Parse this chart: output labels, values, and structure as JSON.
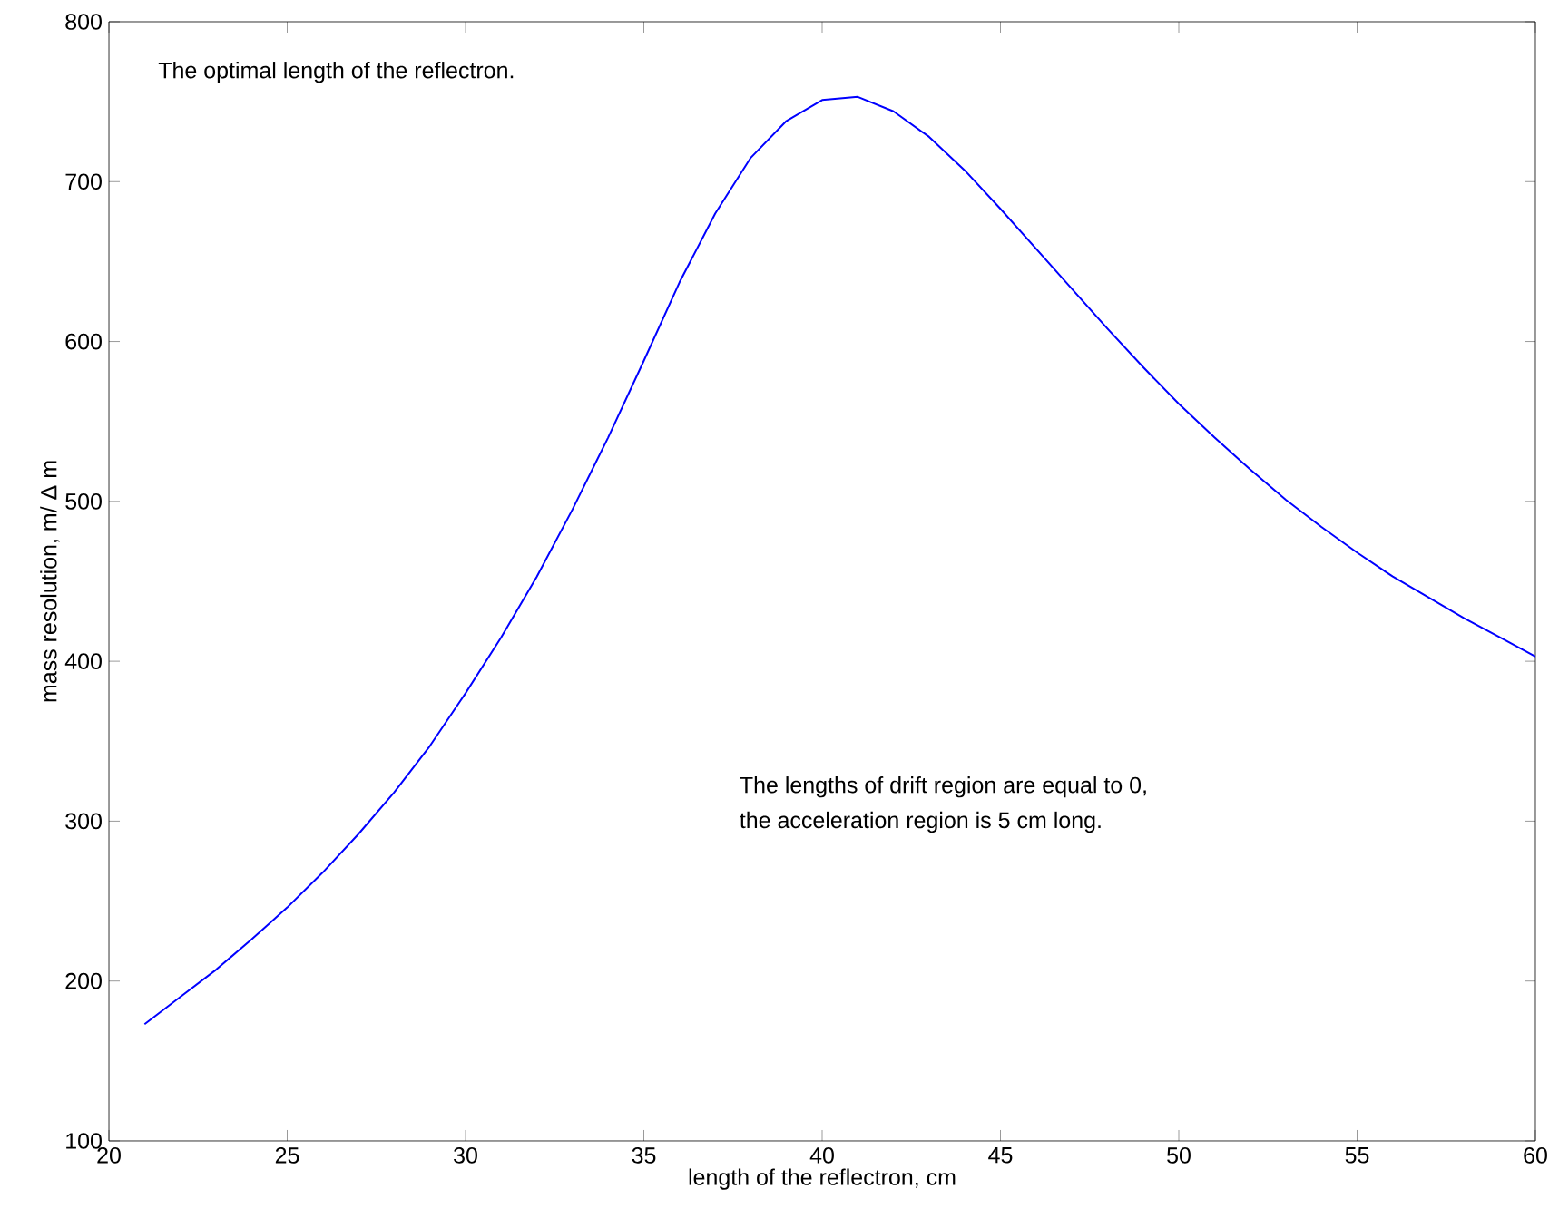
{
  "chart_data": {
    "type": "line",
    "xlabel": "length of the reflectron, cm",
    "ylabel": "mass resolution, m/ Δ m",
    "annotations": [
      {
        "text": "The optimal length of the reflectron."
      },
      {
        "text": "The lengths of drift region are equal to 0,"
      },
      {
        "text": "the acceleration region is 5 cm long."
      }
    ],
    "x": [
      21,
      22,
      23,
      24,
      25,
      26,
      27,
      28,
      29,
      30,
      31,
      32,
      33,
      34,
      35,
      36,
      37,
      38,
      39,
      40,
      41,
      42,
      43,
      44,
      45,
      46,
      47,
      48,
      49,
      50,
      51,
      52,
      53,
      54,
      55,
      56,
      57,
      58,
      59,
      60
    ],
    "series": [
      {
        "color": "#0000ff",
        "values": [
          173,
          190,
          207,
          226,
          246,
          268,
          292,
          318,
          347,
          380,
          415,
          453,
          495,
          540,
          588,
          637,
          680,
          715,
          738,
          751,
          753,
          744,
          728,
          707,
          683,
          658,
          633,
          608,
          584,
          561,
          540,
          520,
          501,
          484,
          468,
          453,
          440,
          427,
          415,
          403
        ]
      }
    ],
    "xlim": [
      20,
      60
    ],
    "ylim": [
      100,
      800
    ],
    "xticks": [
      20,
      25,
      30,
      35,
      40,
      45,
      50,
      55,
      60
    ],
    "yticks": [
      100,
      200,
      300,
      400,
      500,
      600,
      700,
      800
    ],
    "grid": false,
    "marker": "none",
    "line_style": "solid"
  }
}
